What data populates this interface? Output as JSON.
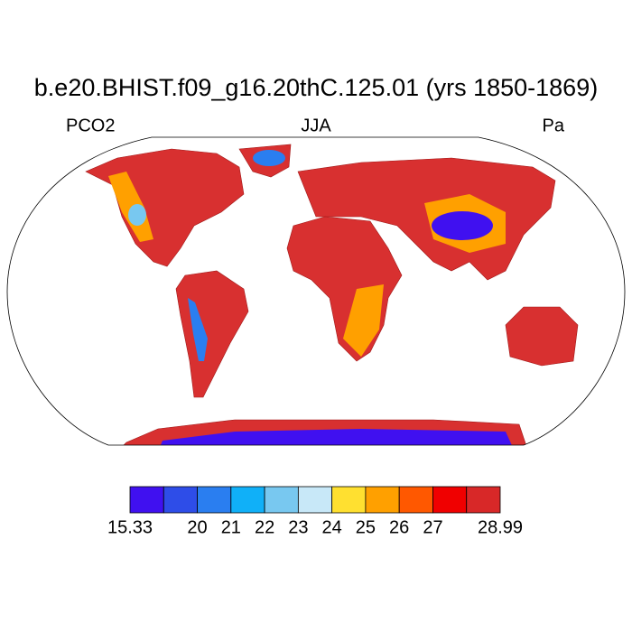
{
  "title": "b.e20.BHIST.f09_g16.20thC.125.01 (yrs 1850-1869)",
  "left_label": "PCO2",
  "center_label": "JJA",
  "right_label": "Pa",
  "colorbar": {
    "colors": [
      "#4010f0",
      "#2e4de8",
      "#2a7ef0",
      "#10b0f8",
      "#78c8f0",
      "#c8e8f8",
      "#ffe030",
      "#ffa000",
      "#ff5800",
      "#f00000",
      "#d82828"
    ],
    "labels": [
      "15.33",
      "20",
      "21",
      "22",
      "23",
      "24",
      "25",
      "26",
      "27",
      "28.99"
    ]
  }
}
